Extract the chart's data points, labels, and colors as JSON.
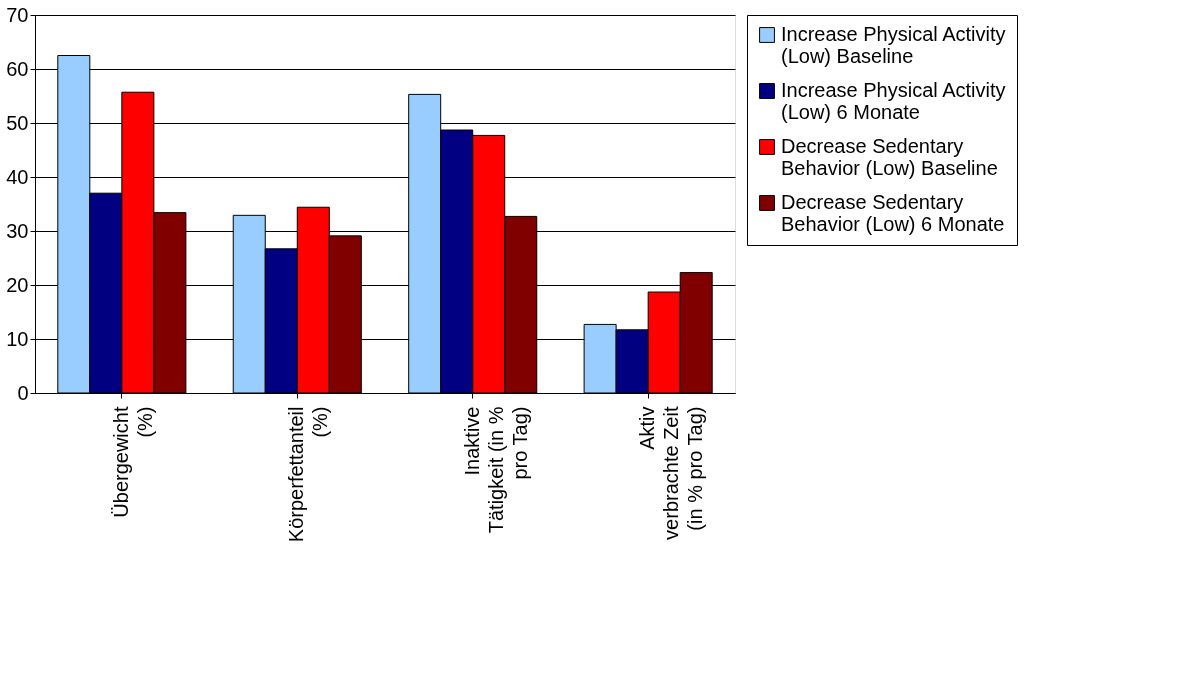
{
  "chart_data": {
    "type": "bar",
    "categories": [
      "Übergewicht\n(%)",
      "Körperfettanteil\n(%)",
      "Inaktive\nTätigkeit (in %\npro Tag)",
      "Aktiv\nverbrachte Zeit\n(in % pro Tag)"
    ],
    "series": [
      {
        "name": "Increase Physical Activity\n(Low) Baseline",
        "color": "#99ccff",
        "values": [
          62.5,
          32.9,
          55.3,
          12.7
        ]
      },
      {
        "name": "Increase Physical Activity\n(Low) 6 Monate",
        "color": "#000080",
        "values": [
          37.0,
          26.7,
          48.7,
          11.7
        ]
      },
      {
        "name": "Decrease Sedentary\nBehavior (Low) Baseline",
        "color": "#ff0000",
        "values": [
          55.7,
          34.4,
          47.7,
          18.7
        ]
      },
      {
        "name": "Decrease Sedentary\nBehavior (Low) 6 Monate",
        "color": "#800000",
        "values": [
          33.4,
          29.1,
          32.7,
          22.3
        ]
      }
    ],
    "ylim": [
      0,
      70
    ],
    "yticks": [
      0,
      10,
      20,
      30,
      40,
      50,
      60,
      70
    ],
    "grid": "y",
    "legend": "right"
  }
}
